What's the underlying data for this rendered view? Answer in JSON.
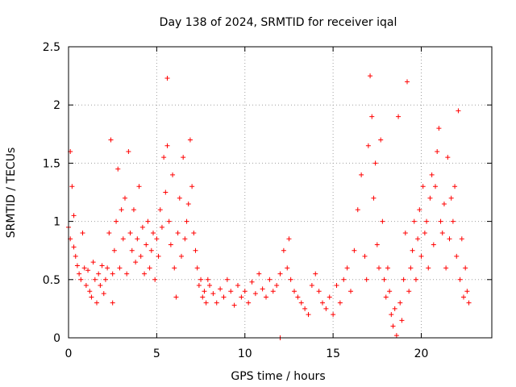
{
  "chart_data": {
    "type": "scatter",
    "title": "Day 138 of 2024, SRMTID for receiver iqal",
    "xlabel": "GPS time / hours",
    "ylabel": "SRMTID / TECUs",
    "xlim": [
      0,
      24
    ],
    "ylim": [
      0,
      2.5
    ],
    "x_ticks": [
      0,
      5,
      10,
      15,
      20
    ],
    "y_ticks": [
      0,
      0.5,
      1,
      1.5,
      2,
      2.5
    ],
    "x_tick_labels": [
      "0",
      "5",
      "10",
      "15",
      "20"
    ],
    "y_tick_labels": [
      "0",
      "0.5",
      "1",
      "1.5",
      "2",
      "2.5"
    ],
    "grid": true,
    "marker": "+",
    "color": "#ff0000",
    "series": [
      {
        "name": "iqal",
        "x": [
          0.0,
          0.1,
          0.1,
          0.2,
          0.3,
          0.3,
          0.4,
          0.5,
          0.6,
          0.7,
          0.8,
          0.9,
          1.0,
          1.1,
          1.2,
          1.3,
          1.4,
          1.5,
          1.6,
          1.7,
          1.8,
          1.9,
          2.0,
          2.1,
          2.2,
          2.3,
          2.4,
          2.5,
          2.5,
          2.6,
          2.7,
          2.8,
          2.9,
          3.0,
          3.1,
          3.2,
          3.3,
          3.4,
          3.5,
          3.6,
          3.7,
          3.8,
          3.9,
          4.0,
          4.1,
          4.2,
          4.3,
          4.4,
          4.5,
          4.6,
          4.7,
          4.8,
          4.9,
          5.0,
          5.1,
          5.2,
          5.3,
          5.4,
          5.5,
          5.6,
          5.6,
          5.7,
          5.8,
          5.9,
          6.0,
          6.1,
          6.2,
          6.3,
          6.4,
          6.5,
          6.6,
          6.7,
          6.8,
          6.9,
          7.0,
          7.1,
          7.2,
          7.3,
          7.4,
          7.5,
          7.6,
          7.7,
          7.8,
          7.9,
          8.0,
          8.2,
          8.4,
          8.6,
          8.8,
          9.0,
          9.2,
          9.4,
          9.6,
          9.8,
          10.0,
          10.2,
          10.4,
          10.6,
          10.8,
          11.0,
          11.2,
          11.4,
          11.6,
          11.8,
          12.0,
          12.0,
          12.2,
          12.4,
          12.5,
          12.6,
          12.8,
          13.0,
          13.2,
          13.4,
          13.6,
          13.8,
          14.0,
          14.2,
          14.4,
          14.6,
          14.8,
          15.0,
          15.2,
          15.4,
          15.6,
          15.8,
          16.0,
          16.2,
          16.4,
          16.6,
          16.8,
          16.9,
          17.0,
          17.1,
          17.2,
          17.3,
          17.4,
          17.5,
          17.6,
          17.7,
          17.8,
          17.9,
          18.0,
          18.1,
          18.2,
          18.3,
          18.4,
          18.5,
          18.6,
          18.7,
          18.8,
          18.9,
          19.0,
          19.1,
          19.2,
          19.3,
          19.4,
          19.5,
          19.6,
          19.7,
          19.8,
          19.9,
          20.0,
          20.1,
          20.2,
          20.3,
          20.4,
          20.5,
          20.6,
          20.7,
          20.8,
          20.9,
          21.0,
          21.1,
          21.2,
          21.3,
          21.4,
          21.5,
          21.6,
          21.7,
          21.8,
          21.9,
          22.0,
          22.1,
          22.2,
          22.3,
          22.4,
          22.5,
          22.6,
          22.7
        ],
        "y": [
          0.95,
          1.6,
          0.85,
          1.3,
          0.78,
          1.05,
          0.7,
          0.62,
          0.55,
          0.5,
          0.9,
          0.6,
          0.45,
          0.58,
          0.4,
          0.35,
          0.65,
          0.5,
          0.3,
          0.55,
          0.45,
          0.62,
          0.38,
          0.5,
          0.6,
          0.9,
          1.7,
          0.55,
          0.3,
          0.75,
          1.0,
          1.45,
          0.6,
          1.1,
          0.85,
          1.2,
          0.55,
          1.6,
          0.9,
          0.75,
          1.1,
          0.65,
          0.85,
          1.3,
          0.7,
          0.95,
          0.55,
          0.8,
          1.0,
          0.6,
          0.75,
          0.9,
          0.5,
          0.85,
          0.7,
          1.1,
          0.95,
          1.55,
          1.25,
          2.23,
          1.65,
          1.0,
          0.8,
          1.4,
          0.6,
          0.35,
          0.9,
          1.2,
          0.7,
          1.55,
          0.85,
          1.0,
          1.15,
          1.7,
          1.3,
          0.9,
          0.75,
          0.6,
          0.45,
          0.5,
          0.35,
          0.4,
          0.3,
          0.5,
          0.45,
          0.38,
          0.3,
          0.42,
          0.35,
          0.5,
          0.4,
          0.28,
          0.45,
          0.35,
          0.4,
          0.3,
          0.48,
          0.38,
          0.55,
          0.42,
          0.35,
          0.5,
          0.4,
          0.45,
          0.0,
          0.55,
          0.75,
          0.6,
          0.85,
          0.5,
          0.4,
          0.35,
          0.3,
          0.25,
          0.2,
          0.45,
          0.55,
          0.4,
          0.3,
          0.25,
          0.35,
          0.2,
          0.45,
          0.3,
          0.5,
          0.6,
          0.4,
          0.75,
          1.1,
          1.4,
          0.7,
          0.5,
          1.65,
          2.25,
          1.9,
          1.2,
          1.5,
          0.8,
          0.6,
          1.7,
          1.0,
          0.5,
          0.35,
          0.6,
          0.4,
          0.2,
          0.1,
          0.25,
          0.02,
          1.9,
          0.3,
          0.15,
          0.5,
          0.9,
          2.2,
          0.4,
          0.6,
          0.75,
          1.0,
          0.5,
          0.85,
          1.1,
          0.7,
          1.3,
          0.9,
          1.0,
          0.6,
          1.2,
          1.4,
          0.8,
          1.3,
          1.6,
          1.8,
          1.0,
          0.9,
          1.15,
          0.6,
          1.55,
          0.85,
          1.2,
          1.0,
          1.3,
          0.7,
          1.95,
          0.5,
          0.85,
          0.35,
          0.6,
          0.4,
          0.3
        ]
      }
    ]
  }
}
